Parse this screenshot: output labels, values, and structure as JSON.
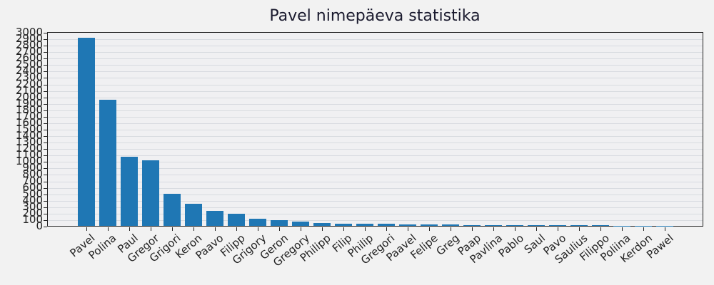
{
  "title": "Pavel nimepäeva statistika",
  "colors": {
    "bar": "#1f77b4",
    "plot_bg": "#f0f0f2",
    "figure_bg": "#f2f2f2",
    "grid": "#d8dbe0"
  },
  "chart_data": {
    "type": "bar",
    "title": "Pavel nimepäeva statistika",
    "xlabel": "",
    "ylabel": "",
    "ylim": [
      0,
      3000
    ],
    "ytick_step": 100,
    "grid": "horizontal",
    "legend": null,
    "categories": [
      "Pavel",
      "Polina",
      "Paul",
      "Gregor",
      "Grigori",
      "Keron",
      "Paavo",
      "Filipp",
      "Grigory",
      "Geron",
      "Gregory",
      "Philipp",
      "Filip",
      "Philip",
      "Gregori",
      "Paavel",
      "Felipe",
      "Greg",
      "Paap",
      "Pavlina",
      "Pablo",
      "Saul",
      "Pavo",
      "Saulius",
      "Filippo",
      "Poliina",
      "Kerdon",
      "Pawel"
    ],
    "values": [
      2915,
      1950,
      1070,
      1010,
      500,
      340,
      230,
      185,
      110,
      88,
      66,
      44,
      33,
      33,
      30,
      22,
      22,
      22,
      11,
      11,
      11,
      8,
      8,
      8,
      8,
      1,
      1,
      1
    ]
  }
}
